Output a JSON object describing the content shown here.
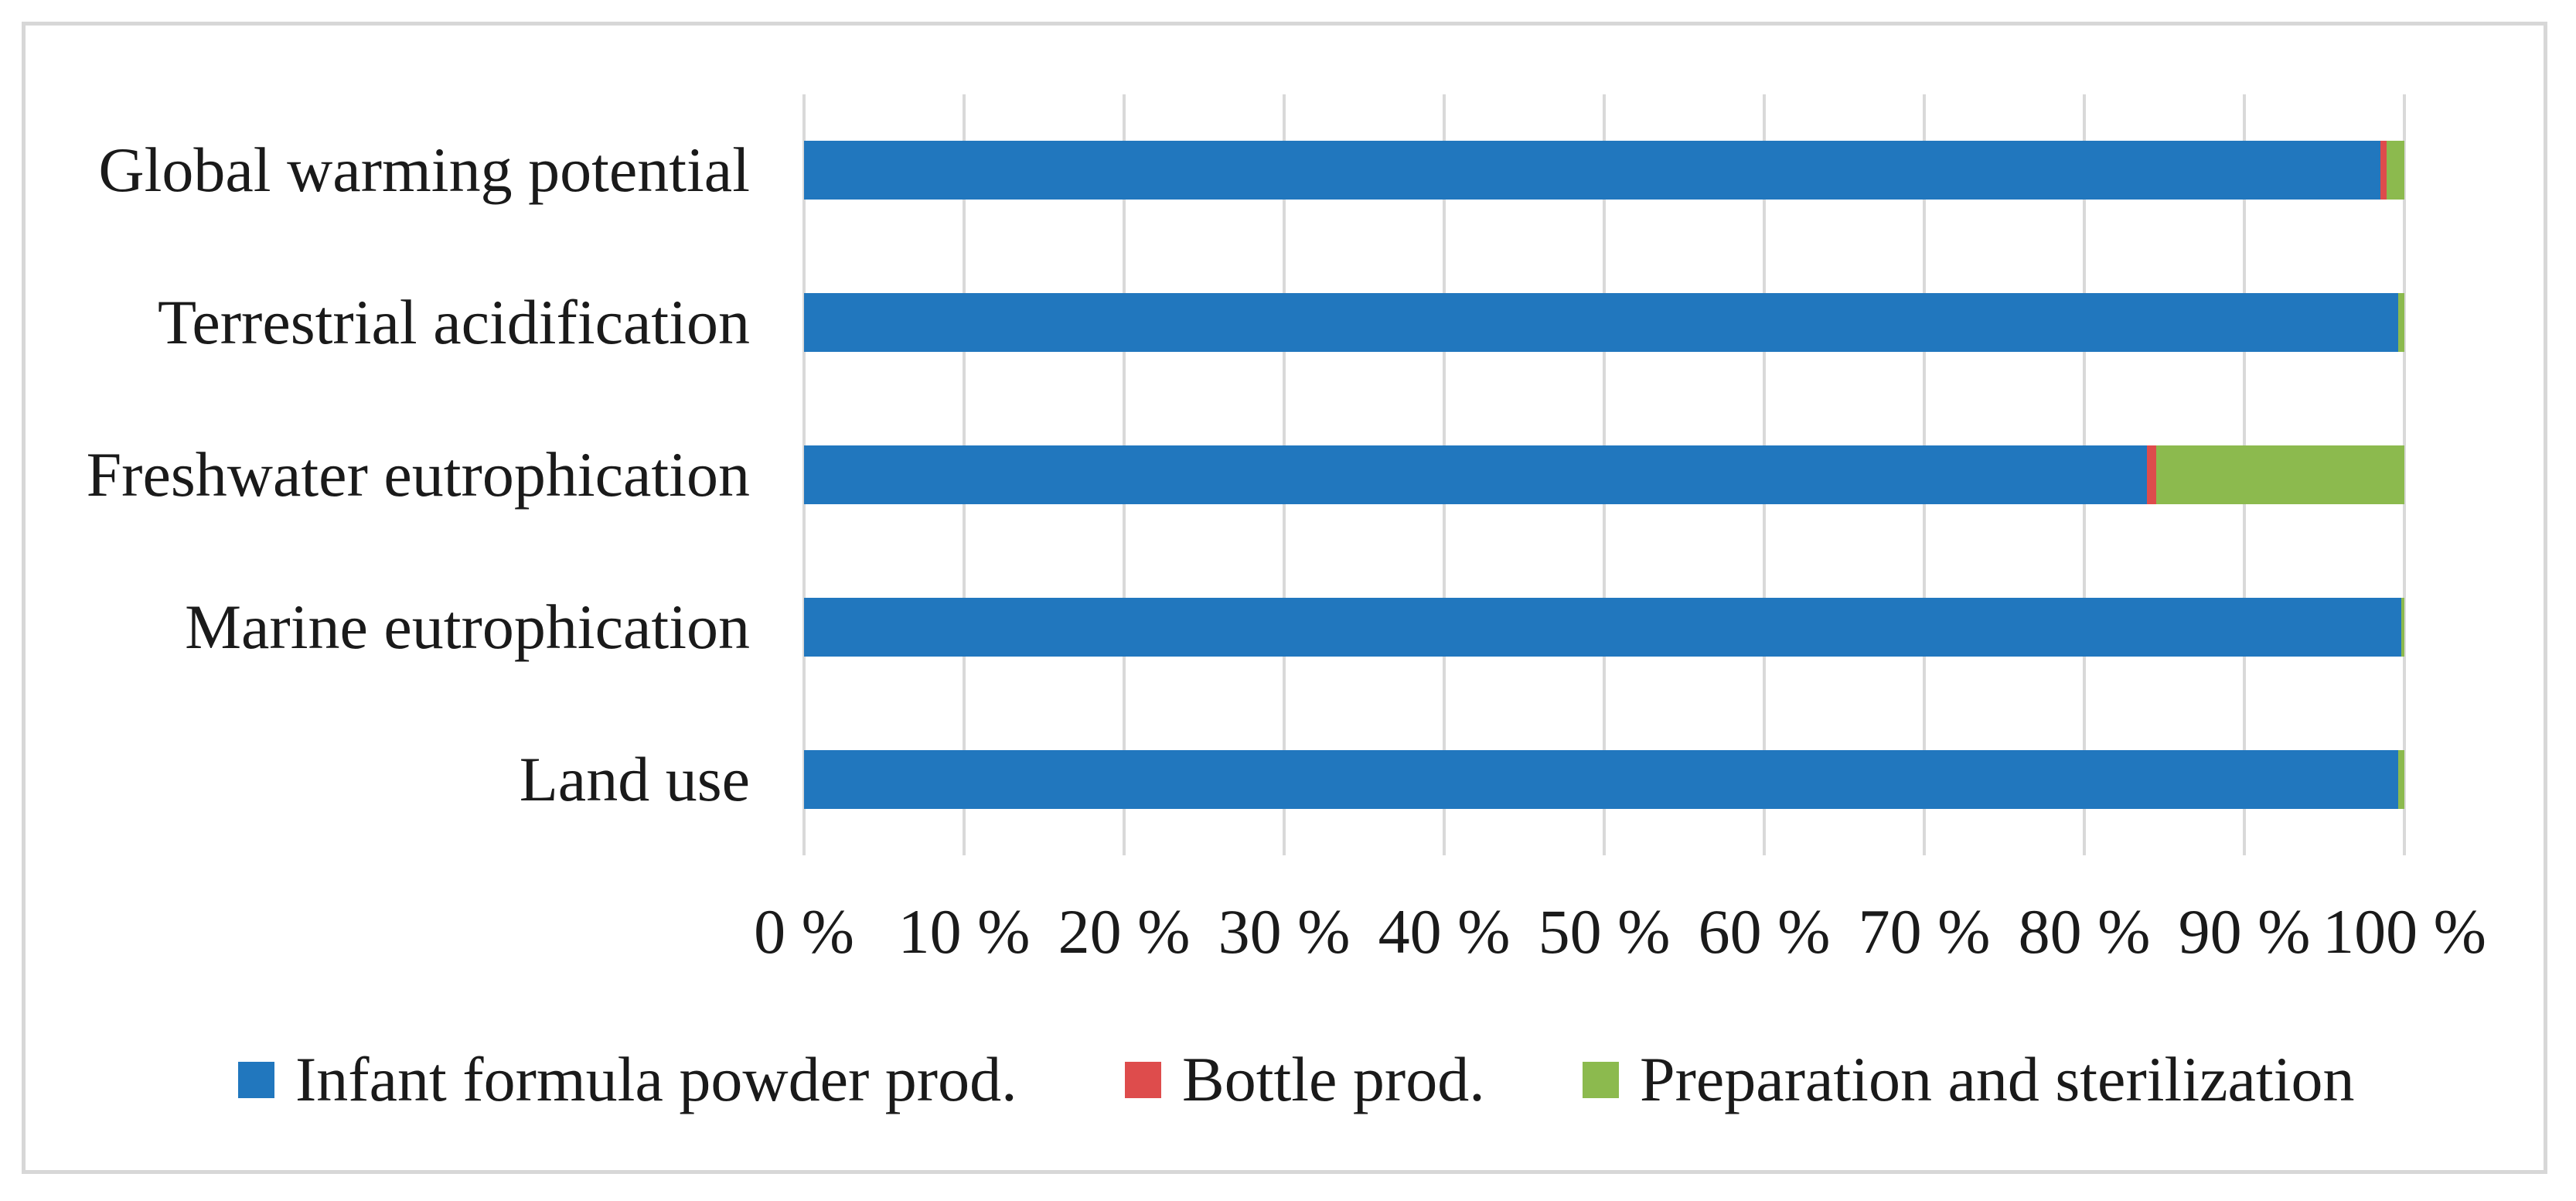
{
  "figure": {
    "background_color": "#ffffff",
    "border_color": "#d7d7d7",
    "text_color": "#1a1a1a"
  },
  "chart_data": {
    "type": "bar",
    "orientation": "horizontal",
    "stacked": true,
    "title": "",
    "xlabel": "",
    "ylabel": "",
    "categories": [
      "Global warming potential",
      "Terrestrial acidification",
      "Freshwater eutrophication",
      "Marine eutrophication",
      "Land use"
    ],
    "series": [
      {
        "name": "Infant formula powder prod.",
        "color": "#2177BE",
        "values": [
          98.5,
          99.6,
          83.9,
          99.8,
          99.6
        ]
      },
      {
        "name": "Bottle prod.",
        "color": "#DE4C4C",
        "values": [
          0.4,
          0.0,
          0.6,
          0.0,
          0.0
        ]
      },
      {
        "name": "Preparation and sterilization",
        "color": "#8CBA4E",
        "values": [
          1.1,
          0.4,
          15.5,
          0.2,
          0.4
        ]
      }
    ],
    "x_axis": {
      "min": 0,
      "max": 100,
      "tick_step": 10,
      "tick_labels": [
        "0 %",
        "10 %",
        "20 %",
        "30 %",
        "40 %",
        "50 %",
        "60 %",
        "70 %",
        "80 %",
        "90 %",
        "100 %"
      ],
      "gridlines": true,
      "gridline_color": "#d9d9d9"
    },
    "legend_position": "bottom"
  }
}
